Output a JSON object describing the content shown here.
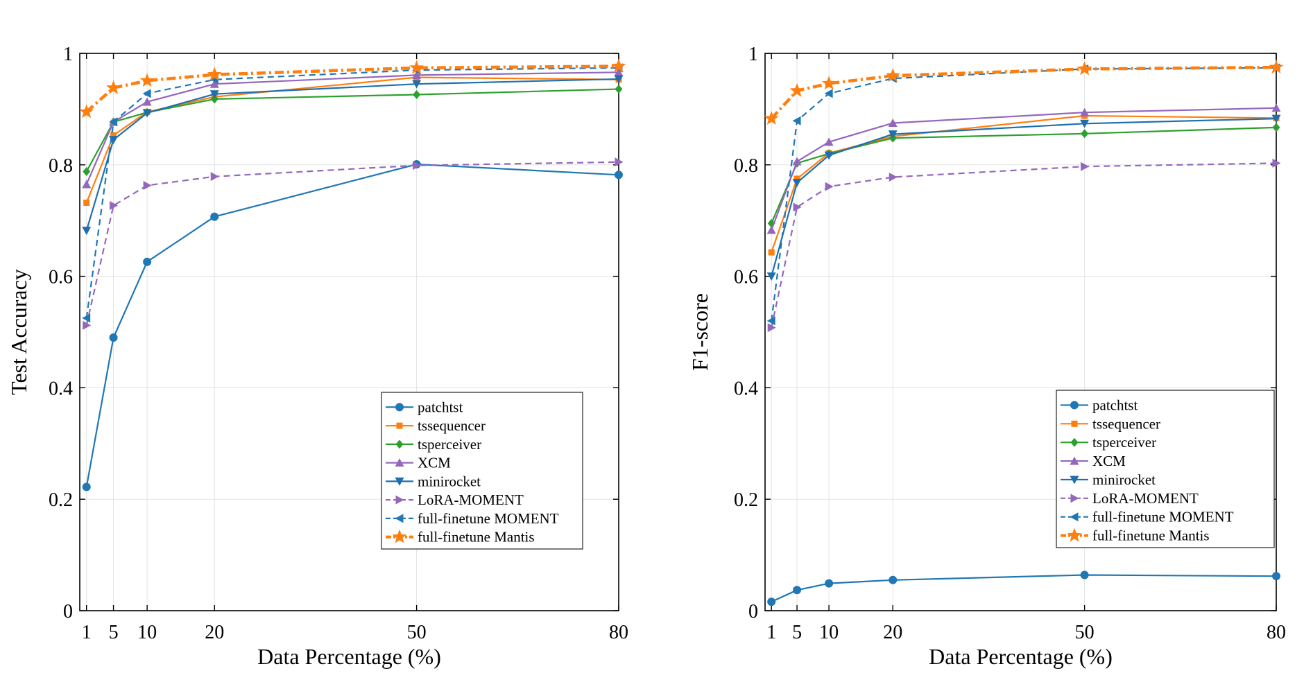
{
  "colors": {
    "patchtst": "#1f77b4",
    "tssequencer": "#ff7f0e",
    "tsperceiver": "#2ca02c",
    "xcm": "#9467bd",
    "minirocket": "#1f6fb0",
    "lora_moment": "#9467bd",
    "fullfinetune_moment": "#1f77b4",
    "fullfinetune_mantis": "#ff7f0e",
    "grid": "#e3e3e3"
  },
  "chart_data": [
    {
      "type": "line",
      "id": "accuracy",
      "title": "",
      "xlabel": "Data Percentage (%)",
      "ylabel": "Test Accuracy",
      "x": [
        1,
        5,
        10,
        20,
        50,
        80
      ],
      "xticks": [
        1,
        5,
        10,
        20,
        50,
        80
      ],
      "xtick_labels": [
        "1",
        "5",
        "10",
        "20",
        "50",
        "80"
      ],
      "yticks": [
        0,
        0.2,
        0.4,
        0.6,
        0.8,
        1
      ],
      "ytick_labels": [
        "0",
        "0.2",
        "0.4",
        "0.6",
        "0.8",
        "1"
      ],
      "xlim": [
        0,
        80
      ],
      "ylim": [
        0,
        1
      ],
      "grid": true,
      "legend_position": "lower-right",
      "series": [
        {
          "key": "patchtst",
          "name": "patchtst",
          "marker": "circle",
          "dash": "solid",
          "values": [
            0.222,
            0.49,
            0.626,
            0.707,
            0.801,
            0.782
          ]
        },
        {
          "key": "tssequencer",
          "name": "tssequencer",
          "marker": "square",
          "dash": "solid",
          "values": [
            0.732,
            0.853,
            0.895,
            0.922,
            0.957,
            0.953
          ]
        },
        {
          "key": "tsperceiver",
          "name": "tsperceiver",
          "marker": "diamond",
          "dash": "solid",
          "values": [
            0.788,
            0.877,
            0.894,
            0.918,
            0.926,
            0.936
          ]
        },
        {
          "key": "xcm",
          "name": "XCM",
          "marker": "triangle-up",
          "dash": "solid",
          "values": [
            0.765,
            0.877,
            0.913,
            0.945,
            0.961,
            0.966
          ]
        },
        {
          "key": "minirocket",
          "name": "minirocket",
          "marker": "triangle-down",
          "dash": "solid",
          "values": [
            0.682,
            0.845,
            0.893,
            0.927,
            0.945,
            0.954
          ]
        },
        {
          "key": "lora_moment",
          "name": "LoRA-MOMENT",
          "marker": "triangle-right",
          "dash": "dashed",
          "values": [
            0.512,
            0.727,
            0.763,
            0.779,
            0.799,
            0.805
          ]
        },
        {
          "key": "fullfinetune_moment",
          "name": "full-finetune MOMENT",
          "marker": "triangle-left",
          "dash": "dashed",
          "values": [
            0.525,
            0.877,
            0.928,
            0.953,
            0.97,
            0.974
          ]
        },
        {
          "key": "fullfinetune_mantis",
          "name": "full-finetune Mantis",
          "marker": "star",
          "dash": "dashdot",
          "values": [
            0.895,
            0.938,
            0.951,
            0.962,
            0.974,
            0.977
          ]
        }
      ]
    },
    {
      "type": "line",
      "id": "f1",
      "title": "",
      "xlabel": "Data Percentage (%)",
      "ylabel": "F1-score",
      "x": [
        1,
        5,
        10,
        20,
        50,
        80
      ],
      "xticks": [
        1,
        5,
        10,
        20,
        50,
        80
      ],
      "xtick_labels": [
        "1",
        "5",
        "10",
        "20",
        "50",
        "80"
      ],
      "yticks": [
        0,
        0.2,
        0.4,
        0.6,
        0.8,
        1
      ],
      "ytick_labels": [
        "0",
        "0.2",
        "0.4",
        "0.6",
        "0.8",
        "1"
      ],
      "xlim": [
        0,
        80
      ],
      "ylim": [
        0,
        1
      ],
      "grid": true,
      "legend_position": "lower-right",
      "series": [
        {
          "key": "patchtst",
          "name": "patchtst",
          "marker": "circle",
          "dash": "solid",
          "values": [
            0.016,
            0.037,
            0.049,
            0.055,
            0.064,
            0.062
          ]
        },
        {
          "key": "tssequencer",
          "name": "tssequencer",
          "marker": "square",
          "dash": "solid",
          "values": [
            0.643,
            0.775,
            0.821,
            0.851,
            0.888,
            0.884
          ]
        },
        {
          "key": "tsperceiver",
          "name": "tsperceiver",
          "marker": "diamond",
          "dash": "solid",
          "values": [
            0.695,
            0.803,
            0.82,
            0.848,
            0.856,
            0.867
          ]
        },
        {
          "key": "xcm",
          "name": "XCM",
          "marker": "triangle-up",
          "dash": "solid",
          "values": [
            0.683,
            0.806,
            0.841,
            0.875,
            0.894,
            0.902
          ]
        },
        {
          "key": "minirocket",
          "name": "minirocket",
          "marker": "triangle-down",
          "dash": "solid",
          "values": [
            0.6,
            0.768,
            0.817,
            0.855,
            0.874,
            0.883
          ]
        },
        {
          "key": "lora_moment",
          "name": "LoRA-MOMENT",
          "marker": "triangle-right",
          "dash": "dashed",
          "values": [
            0.508,
            0.724,
            0.761,
            0.778,
            0.797,
            0.803
          ]
        },
        {
          "key": "fullfinetune_moment",
          "name": "full-finetune MOMENT",
          "marker": "triangle-left",
          "dash": "dashed",
          "values": [
            0.52,
            0.879,
            0.928,
            0.955,
            0.972,
            0.974
          ]
        },
        {
          "key": "fullfinetune_mantis",
          "name": "full-finetune Mantis",
          "marker": "star",
          "dash": "dashdot",
          "values": [
            0.883,
            0.933,
            0.946,
            0.96,
            0.972,
            0.975
          ]
        }
      ]
    }
  ]
}
